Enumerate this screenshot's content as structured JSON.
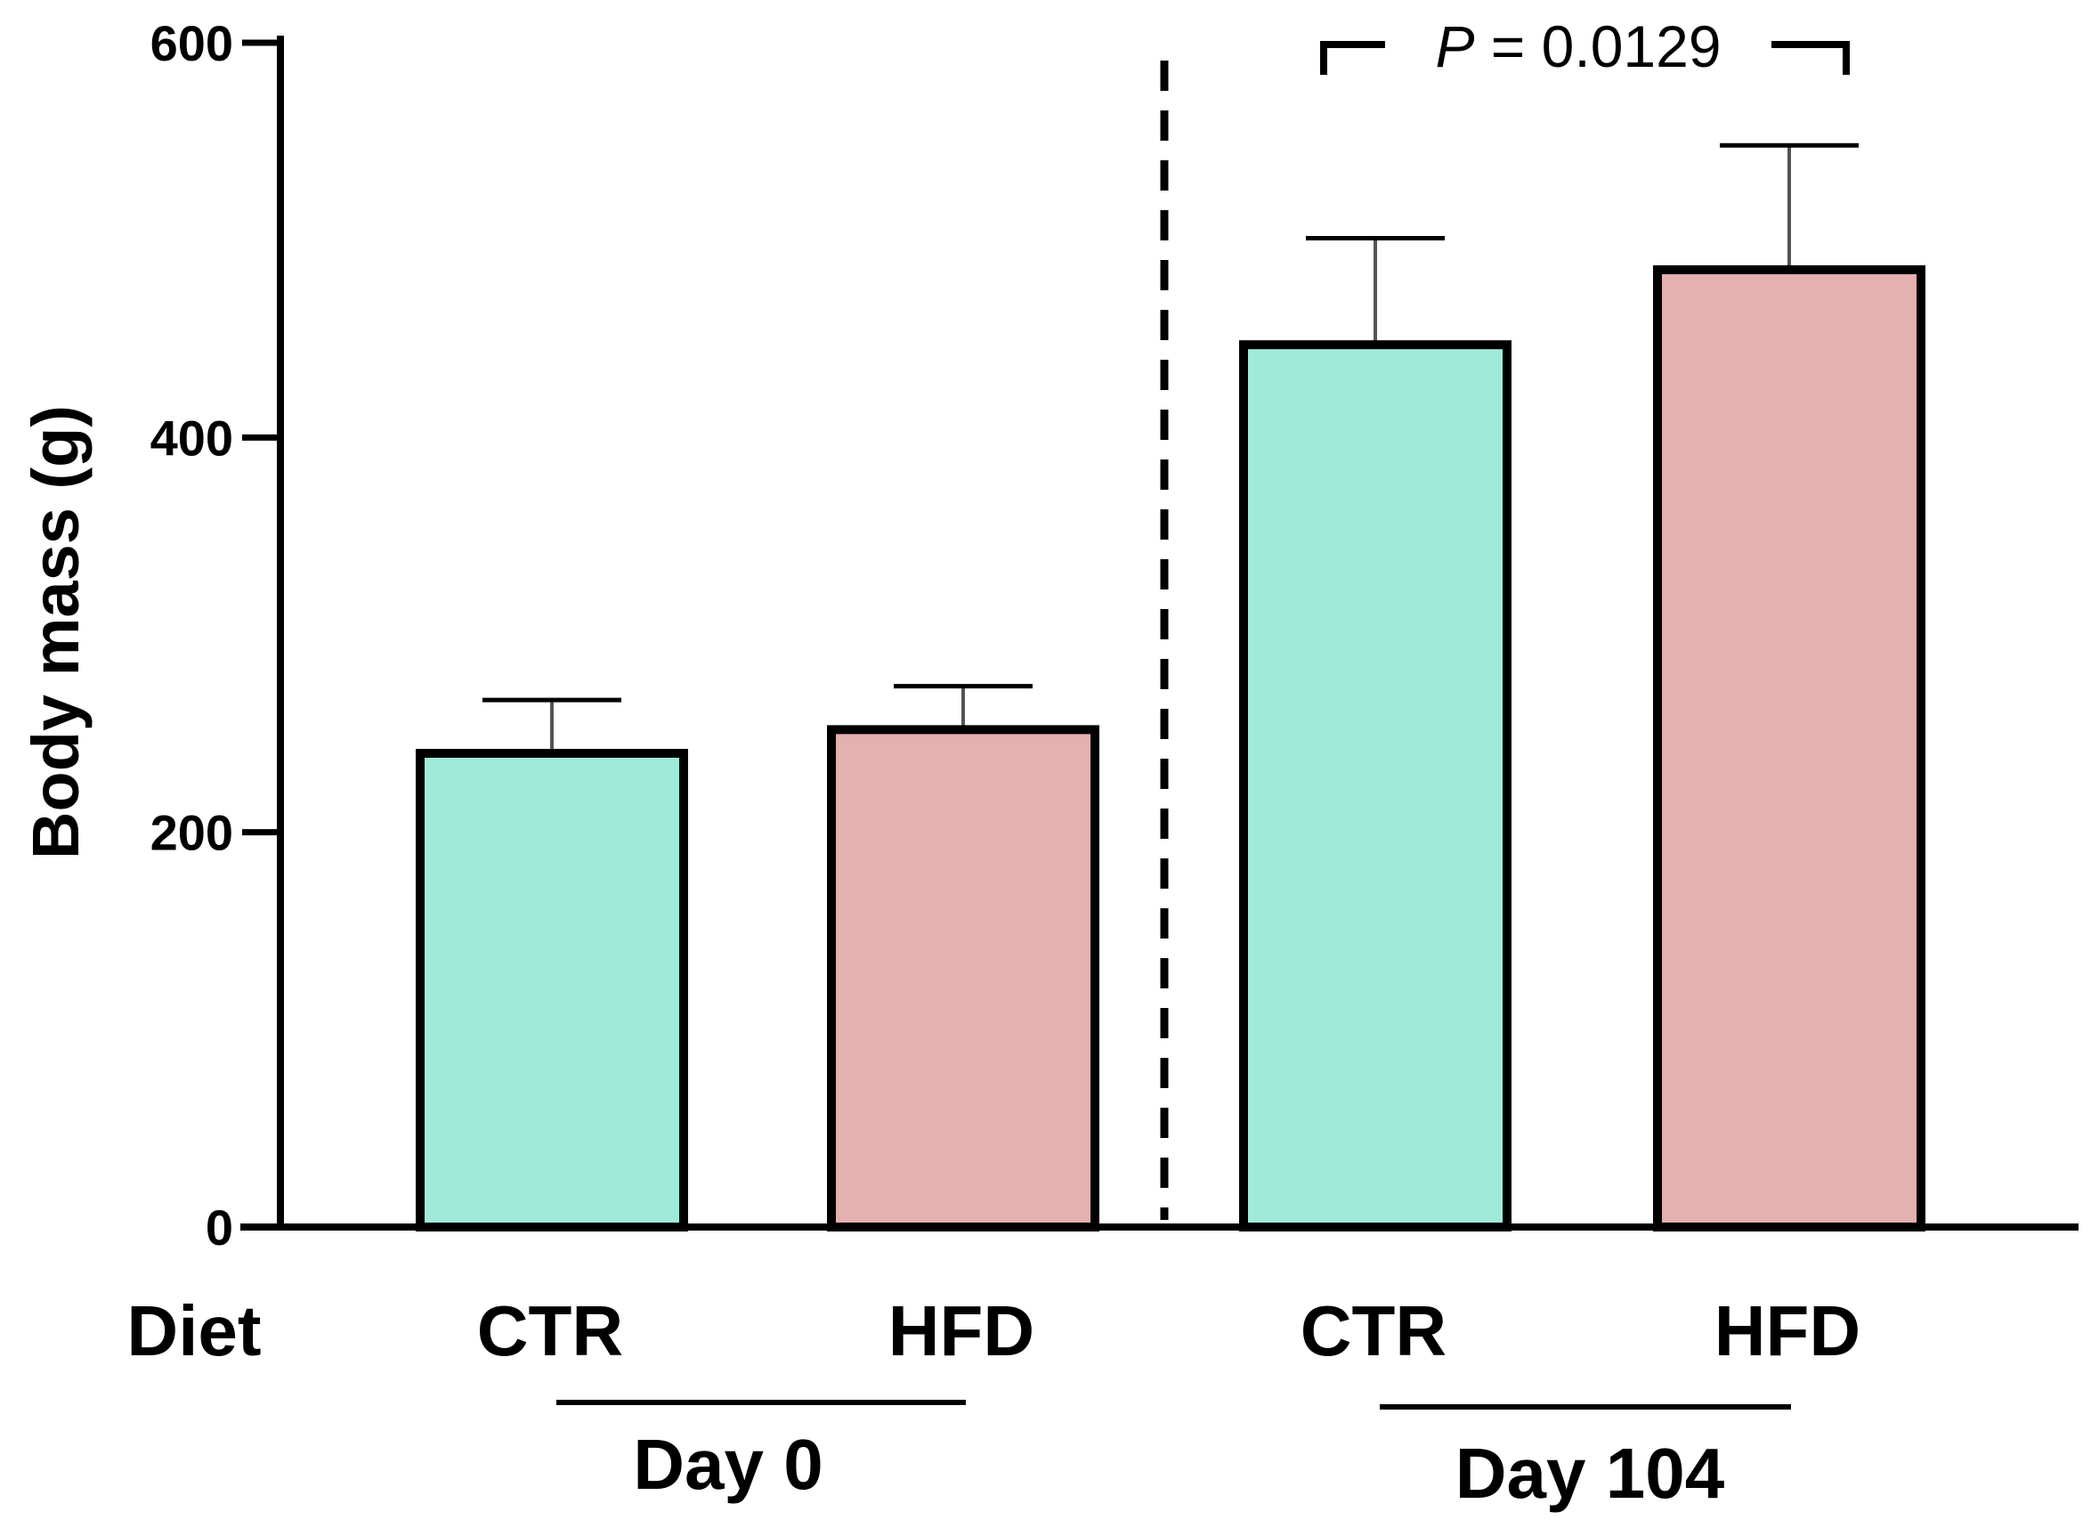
{
  "chart_data": {
    "type": "bar",
    "title": "",
    "ylabel": "Body mass (g)",
    "xlabel": "",
    "ylim": [
      0,
      600
    ],
    "yticks": [
      0,
      200,
      400,
      600
    ],
    "row_label": "Diet",
    "bars": [
      {
        "group": "Day 0",
        "category": "CTR",
        "value": 240,
        "error": 27,
        "color": "#a0eada"
      },
      {
        "group": "Day 0",
        "category": "HFD",
        "value": 252,
        "error": 22,
        "color": "#e4b0b0"
      },
      {
        "group": "Day 104",
        "category": "CTR",
        "value": 447,
        "error": 54,
        "color": "#a0eada"
      },
      {
        "group": "Day 104",
        "category": "HFD",
        "value": 485,
        "error": 63,
        "color": "#e4b0b0"
      }
    ],
    "groups": [
      "Day 0",
      "Day 104"
    ],
    "annotation": {
      "prefix": "P",
      "text": " = 0.0129",
      "between": [
        "Day 104 CTR",
        "Day 104 HFD"
      ]
    }
  }
}
